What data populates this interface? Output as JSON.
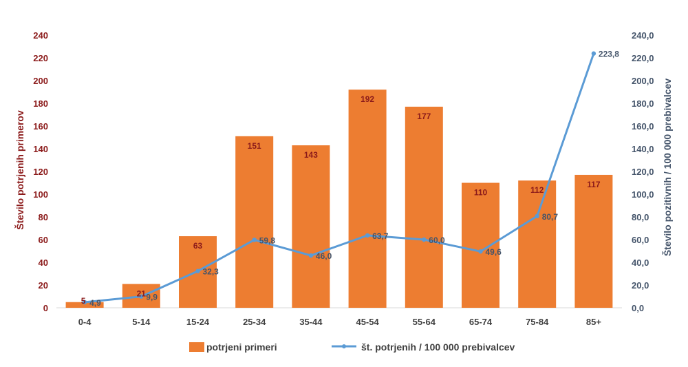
{
  "chart_data": {
    "type": "bar",
    "categories": [
      "0-4",
      "5-14",
      "15-24",
      "25-34",
      "35-44",
      "45-54",
      "55-64",
      "65-74",
      "75-84",
      "85+"
    ],
    "series": [
      {
        "name": "potrjeni primeri",
        "type": "bar",
        "axis": "left",
        "values": [
          5,
          21,
          63,
          151,
          143,
          192,
          177,
          110,
          112,
          117
        ],
        "labels": [
          "5",
          "21",
          "63",
          "151",
          "143",
          "192",
          "177",
          "110",
          "112",
          "117"
        ],
        "color": "#ed7d31"
      },
      {
        "name": "št. potrjenih / 100 000 prebivalcev",
        "type": "line",
        "axis": "right",
        "values": [
          4.9,
          9.9,
          32.3,
          59.8,
          46.0,
          63.7,
          60.0,
          49.6,
          80.7,
          223.8
        ],
        "labels": [
          "4,9",
          "9,9",
          "32,3",
          "59,8",
          "46,0",
          "63,7",
          "60,0",
          "49,6",
          "80,7",
          "223,8"
        ],
        "color": "#5b9bd5"
      }
    ],
    "ylabel": "Število potrjenih primerov",
    "y2label": "Število pozitivnih  / 100 000 prebivalcev",
    "ylim": [
      0,
      240
    ],
    "y2lim": [
      0,
      240
    ],
    "yticks": [
      "0",
      "20",
      "40",
      "60",
      "80",
      "100",
      "120",
      "140",
      "160",
      "180",
      "200",
      "220",
      "240"
    ],
    "y2ticks": [
      "0,0",
      "20,0",
      "40,0",
      "60,0",
      "80,0",
      "100,0",
      "120,0",
      "140,0",
      "160,0",
      "180,0",
      "200,0",
      "220,0",
      "240,0"
    ],
    "grid": false,
    "legend_position": "bottom"
  }
}
